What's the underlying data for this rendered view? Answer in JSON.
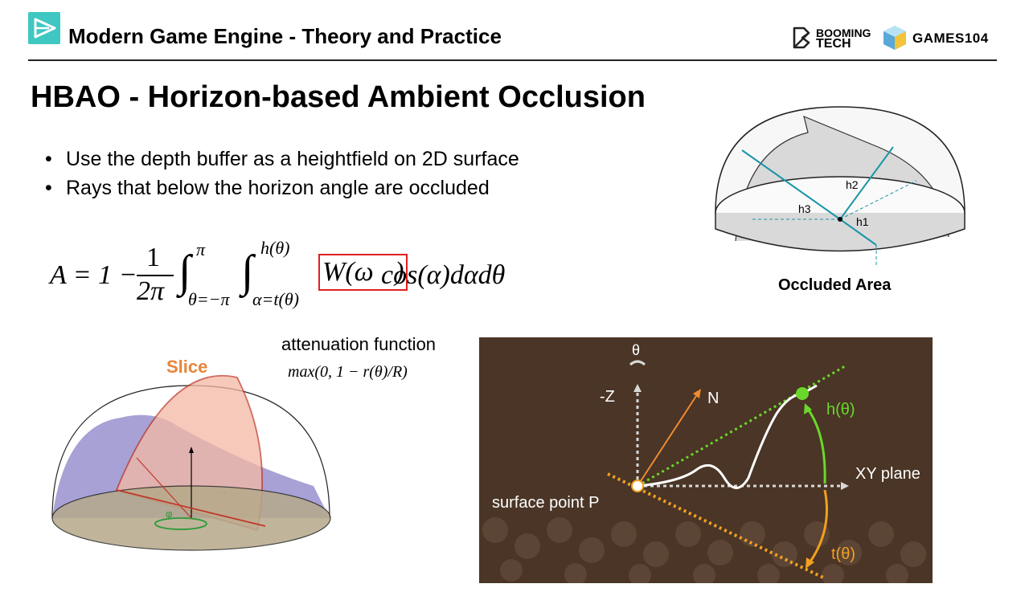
{
  "header": {
    "course_title": "Modern Game Engine - Theory and Practice",
    "brand_left_line1": "BOOMING",
    "brand_left_line2": "TECH",
    "brand_right": "GAMES104"
  },
  "slide": {
    "title": "HBAO - Horizon-based Ambient Occlusion",
    "bullets": [
      "Use the depth buffer as a heightfield on 2D surface",
      "Rays that below the horizon angle are occluded"
    ]
  },
  "formula": {
    "lhs": "A = 1 −",
    "frac_num": "1",
    "frac_den": "2π",
    "int1_upper": "π",
    "int1_lower": "θ=−π",
    "int2_upper": "h(θ)",
    "int2_lower": "α=t(θ)",
    "boxed_term": "W(ω⃗)",
    "rest": "cos(α)dαdθ"
  },
  "attenuation": {
    "label": "attenuation function",
    "expression": "max(0, 1 − r(θ)/R)"
  },
  "occluded_figure": {
    "caption": "Occluded Area",
    "h1": "h1",
    "h2": "h2",
    "h3": "h3"
  },
  "slice_figure": {
    "label": "Slice",
    "phi": "φ"
  },
  "horizon_figure": {
    "theta": "θ",
    "neg_z": "-Z",
    "normal": "N",
    "h_theta": "h(θ)",
    "xy_plane": "XY plane",
    "surface_point": "surface point P",
    "t_theta": "t(θ)"
  },
  "colors": {
    "accent_teal": "#3fc7c2",
    "formula_box": "#e02020",
    "slice_orange": "#e8843a",
    "dark_bg": "#4a3526",
    "green": "#6ad82a",
    "orange": "#f2a020",
    "ray": "#1a95a8"
  }
}
